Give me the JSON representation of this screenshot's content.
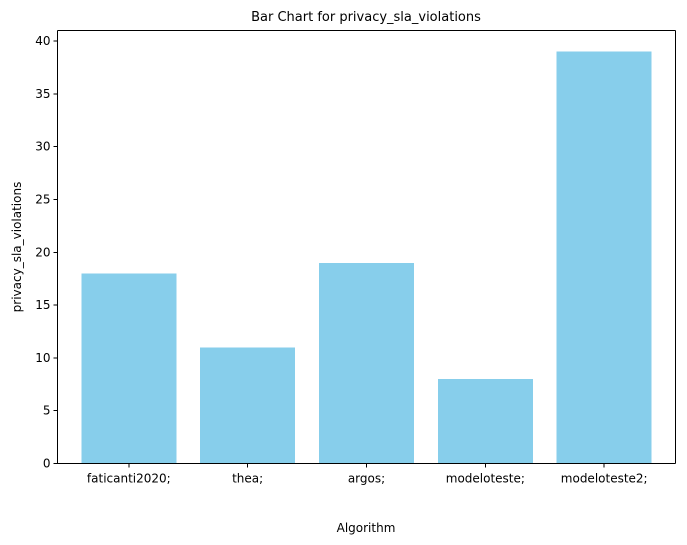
{
  "chart_data": {
    "type": "bar",
    "title": "Bar Chart for privacy_sla_violations",
    "xlabel": "Algorithm",
    "ylabel": "privacy_sla_violations",
    "categories": [
      "faticanti2020;",
      "thea;",
      "argos;",
      "modeloteste;",
      "modeloteste2;"
    ],
    "values": [
      18,
      11,
      19,
      8,
      39
    ],
    "ylim": [
      0,
      41
    ],
    "yticks": [
      0,
      5,
      10,
      15,
      20,
      25,
      30,
      35,
      40
    ],
    "grid": false,
    "bar_color": "#87ceeb"
  }
}
